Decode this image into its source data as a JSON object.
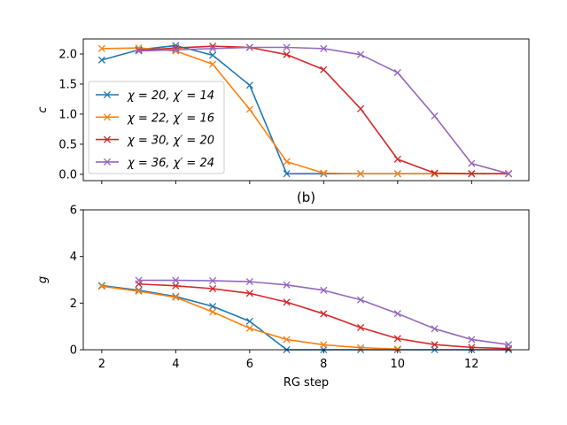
{
  "chart_data": [
    {
      "type": "line",
      "ylabel": "c",
      "xlabel": "",
      "xlim": [
        1.5,
        13.55
      ],
      "ylim": [
        -0.105,
        2.25
      ],
      "yticks": [
        0.0,
        0.5,
        1.0,
        1.5,
        2.0
      ],
      "ytick_labels": [
        "0.0",
        "0.5",
        "1.0",
        "1.5",
        "2.0"
      ],
      "xticks": [
        2,
        4,
        6,
        8,
        10,
        12
      ],
      "show_xtick_labels": false,
      "grid": false,
      "legend": {
        "placement": "center-left",
        "entries": [
          "χ = 20, χ′ = 14",
          "χ = 22, χ′ = 16",
          "χ = 30, χ′ = 20",
          "χ = 36, χ′ = 24"
        ]
      },
      "series": [
        {
          "name": "χ = 20, χ′ = 14",
          "color": "#1f77b4",
          "x": [
            2,
            3,
            4,
            5,
            6,
            7,
            8,
            9,
            10,
            11,
            12,
            13
          ],
          "y": [
            1.9,
            2.07,
            2.14,
            1.98,
            1.48,
            0.01,
            0.01,
            0.01,
            0.01,
            0.01,
            0.01,
            0.01
          ]
        },
        {
          "name": "χ = 22, χ′ = 16",
          "color": "#ff7f0e",
          "x": [
            2,
            3,
            4,
            5,
            6,
            7,
            8,
            9,
            10,
            11,
            12,
            13
          ],
          "y": [
            2.09,
            2.1,
            2.05,
            1.83,
            1.08,
            0.21,
            0.02,
            0.01,
            0.01,
            0.01,
            0.01,
            0.01
          ]
        },
        {
          "name": "χ = 30, χ′ = 20",
          "color": "#d62728",
          "x": [
            3,
            4,
            5,
            6,
            7,
            8,
            9,
            10,
            11,
            12,
            13
          ],
          "y": [
            2.06,
            2.1,
            2.13,
            2.11,
            1.99,
            1.74,
            1.09,
            0.25,
            0.02,
            0.01,
            0.01
          ]
        },
        {
          "name": "χ = 36, χ′ = 24",
          "color": "#9467bd",
          "x": [
            3,
            4,
            5,
            6,
            7,
            8,
            9,
            10,
            11,
            12,
            13
          ],
          "y": [
            2.05,
            2.07,
            2.09,
            2.11,
            2.11,
            2.09,
            1.99,
            1.69,
            0.97,
            0.18,
            0.01
          ]
        }
      ]
    },
    {
      "type": "line",
      "title": "(b)",
      "ylabel": "g",
      "xlabel": "RG step",
      "xlim": [
        1.5,
        13.55
      ],
      "ylim": [
        0,
        6
      ],
      "yticks": [
        0,
        2,
        4,
        6
      ],
      "ytick_labels": [
        "0",
        "2",
        "4",
        "6"
      ],
      "xticks": [
        2,
        4,
        6,
        8,
        10,
        12
      ],
      "xtick_labels": [
        "2",
        "4",
        "6",
        "8",
        "10",
        "12"
      ],
      "show_xtick_labels": true,
      "grid": false,
      "series": [
        {
          "name": "χ = 20, χ′ = 14",
          "color": "#1f77b4",
          "x": [
            2,
            3,
            4,
            5,
            6,
            7,
            8,
            9,
            10,
            11,
            12,
            13
          ],
          "y": [
            2.75,
            2.55,
            2.28,
            1.86,
            1.22,
            0.0,
            0.0,
            0.0,
            0.0,
            0.0,
            0.0,
            0.0
          ]
        },
        {
          "name": "χ = 22, χ′ = 16",
          "color": "#ff7f0e",
          "x": [
            2,
            3,
            4,
            5,
            6,
            7,
            8,
            9,
            10
          ],
          "y": [
            2.72,
            2.51,
            2.25,
            1.62,
            0.92,
            0.44,
            0.21,
            0.09,
            0.03
          ]
        },
        {
          "name": "χ = 30, χ′ = 20",
          "color": "#d62728",
          "x": [
            3,
            4,
            5,
            6,
            7,
            8,
            9,
            10,
            11,
            12,
            13
          ],
          "y": [
            2.82,
            2.74,
            2.62,
            2.42,
            2.04,
            1.54,
            0.95,
            0.48,
            0.22,
            0.1,
            0.05
          ]
        },
        {
          "name": "χ = 36, χ′ = 24",
          "color": "#9467bd",
          "x": [
            3,
            4,
            5,
            6,
            7,
            8,
            9,
            10,
            11,
            12,
            13
          ],
          "y": [
            2.98,
            2.98,
            2.96,
            2.92,
            2.78,
            2.55,
            2.14,
            1.55,
            0.9,
            0.44,
            0.22
          ]
        }
      ]
    }
  ]
}
